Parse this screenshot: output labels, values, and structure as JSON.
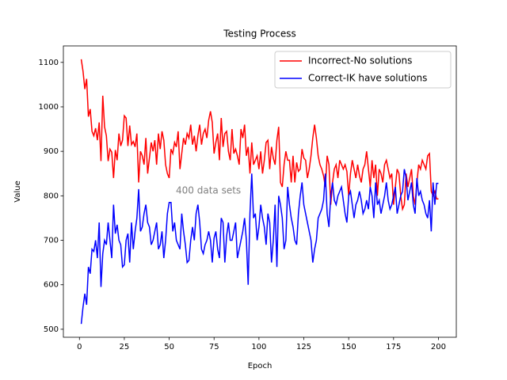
{
  "chart_data": {
    "type": "line",
    "title": "Testing Process",
    "xlabel": "Epoch",
    "ylabel": "Value",
    "annotation": "400 data sets",
    "x": [
      1,
      2,
      3,
      4,
      5,
      6,
      7,
      8,
      9,
      10,
      11,
      12,
      13,
      14,
      15,
      16,
      17,
      18,
      19,
      20,
      21,
      22,
      23,
      24,
      25,
      26,
      27,
      28,
      29,
      30,
      31,
      32,
      33,
      34,
      35,
      36,
      37,
      38,
      39,
      40,
      41,
      42,
      43,
      44,
      45,
      46,
      47,
      48,
      49,
      50,
      51,
      52,
      53,
      54,
      55,
      56,
      57,
      58,
      59,
      60,
      61,
      62,
      63,
      64,
      65,
      66,
      67,
      68,
      69,
      70,
      71,
      72,
      73,
      74,
      75,
      76,
      77,
      78,
      79,
      80,
      81,
      82,
      83,
      84,
      85,
      86,
      87,
      88,
      89,
      90,
      91,
      92,
      93,
      94,
      95,
      96,
      97,
      98,
      99,
      100,
      101,
      102,
      103,
      104,
      105,
      106,
      107,
      108,
      109,
      110,
      111,
      112,
      113,
      114,
      115,
      116,
      117,
      118,
      119,
      120,
      121,
      122,
      123,
      124,
      125,
      126,
      127,
      128,
      129,
      130,
      131,
      132,
      133,
      134,
      135,
      136,
      137,
      138,
      139,
      140,
      141,
      142,
      143,
      144,
      145,
      146,
      147,
      148,
      149,
      150,
      151,
      152,
      153,
      154,
      155,
      156,
      157,
      158,
      159,
      160,
      161,
      162,
      163,
      164,
      165,
      166,
      167,
      168,
      169,
      170,
      171,
      172,
      173,
      174,
      175,
      176,
      177,
      178,
      179,
      180,
      181,
      182,
      183,
      184,
      185,
      186,
      187,
      188,
      189,
      190,
      191,
      192,
      193,
      194,
      195,
      196,
      197,
      198,
      199,
      200
    ],
    "series": [
      {
        "name": "Incorrect-No solutions",
        "color": "#ff0000",
        "values": [
          1107,
          1080,
          1040,
          1063,
          978,
          995,
          945,
          935,
          952,
          925,
          965,
          878,
          1025,
          955,
          935,
          878,
          905,
          898,
          840,
          903,
          880,
          940,
          912,
          925,
          980,
          975,
          912,
          958,
          915,
          922,
          910,
          940,
          830,
          900,
          890,
          870,
          930,
          850,
          885,
          920,
          900,
          925,
          870,
          940,
          905,
          945,
          925,
          870,
          850,
          840,
          905,
          895,
          920,
          910,
          945,
          860,
          895,
          930,
          915,
          940,
          930,
          960,
          915,
          935,
          900,
          935,
          960,
          915,
          940,
          950,
          930,
          970,
          990,
          965,
          895,
          920,
          940,
          880,
          975,
          910,
          940,
          945,
          900,
          880,
          950,
          895,
          905,
          890,
          870,
          950,
          930,
          960,
          890,
          910,
          850,
          920,
          870,
          880,
          890,
          860,
          900,
          850,
          880,
          920,
          925,
          860,
          910,
          885,
          870,
          925,
          955,
          830,
          820,
          870,
          900,
          880,
          880,
          830,
          890,
          830,
          875,
          855,
          860,
          905,
          885,
          880,
          840,
          860,
          890,
          930,
          960,
          930,
          890,
          870,
          860,
          845,
          820,
          890,
          870,
          780,
          830,
          860,
          870,
          840,
          880,
          870,
          860,
          870,
          855,
          800,
          850,
          880,
          860,
          840,
          870,
          845,
          830,
          860,
          870,
          900,
          860,
          820,
          880,
          840,
          870,
          800,
          860,
          850,
          830,
          870,
          880,
          860,
          840,
          850,
          780,
          820,
          860,
          850,
          800,
          770,
          780,
          850,
          820,
          840,
          860,
          800,
          780,
          830,
          870,
          860,
          880,
          870,
          860,
          890,
          895,
          810,
          800,
          810,
          793,
          793
        ]
      },
      {
        "name": "Correct-IK have solutions",
        "color": "#0000ff",
        "values": [
          512,
          550,
          580,
          555,
          640,
          625,
          680,
          675,
          700,
          660,
          740,
          595,
          670,
          700,
          690,
          740,
          700,
          660,
          780,
          715,
          735,
          700,
          690,
          640,
          645,
          700,
          715,
          650,
          740,
          680,
          720,
          750,
          815,
          720,
          730,
          760,
          780,
          740,
          730,
          690,
          700,
          720,
          740,
          680,
          690,
          720,
          660,
          700,
          760,
          785,
          785,
          720,
          740,
          700,
          690,
          680,
          760,
          720,
          690,
          650,
          655,
          700,
          730,
          700,
          760,
          780,
          740,
          680,
          670,
          690,
          700,
          720,
          700,
          650,
          705,
          720,
          680,
          660,
          750,
          740,
          650,
          710,
          740,
          700,
          700,
          720,
          740,
          660,
          680,
          700,
          720,
          750,
          700,
          600,
          760,
          850,
          750,
          760,
          700,
          730,
          780,
          750,
          730,
          690,
          760,
          740,
          650,
          700,
          780,
          640,
          800,
          780,
          750,
          680,
          700,
          820,
          780,
          750,
          730,
          700,
          690,
          760,
          800,
          830,
          780,
          760,
          740,
          720,
          700,
          650,
          680,
          700,
          750,
          760,
          770,
          790,
          850,
          760,
          730,
          800,
          830,
          790,
          780,
          800,
          810,
          820,
          790,
          760,
          740,
          800,
          810,
          780,
          750,
          780,
          790,
          810,
          790,
          760,
          770,
          790,
          770,
          820,
          800,
          750,
          830,
          780,
          790,
          760,
          780,
          800,
          830,
          790,
          770,
          780,
          800,
          820,
          760,
          780,
          800,
          810,
          860,
          840,
          790,
          810,
          830,
          780,
          760,
          840,
          800,
          810,
          790,
          780,
          760,
          750,
          790,
          720,
          830,
          780,
          828,
          828
        ]
      }
    ],
    "xlim": [
      -8.95,
      209.95
    ],
    "xticks": [
      0,
      25,
      50,
      75,
      100,
      125,
      150,
      175,
      200
    ],
    "ylim": [
      482,
      1137
    ],
    "yticks": [
      500,
      600,
      700,
      800,
      900,
      1000,
      1100
    ],
    "legend": "upper right"
  }
}
